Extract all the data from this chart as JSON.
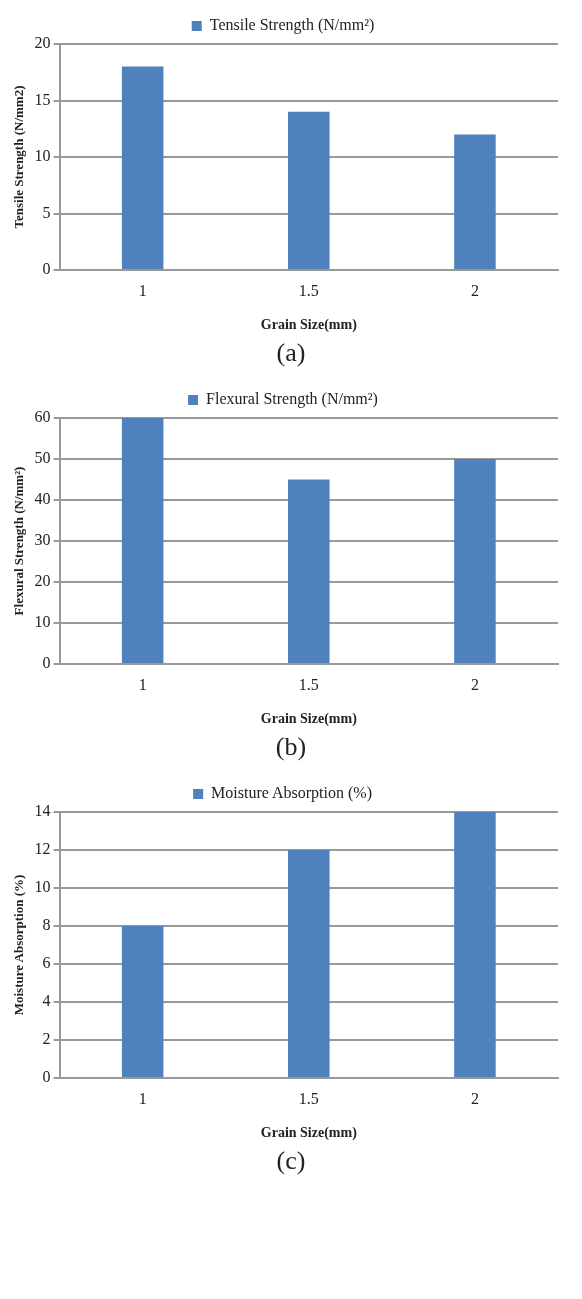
{
  "chart_data": [
    {
      "type": "bar",
      "categories": [
        "1",
        "1.5",
        "2"
      ],
      "series": [
        {
          "name": "Tensile Strength (N/mm²)",
          "color": "#4f81bd",
          "values": [
            18,
            14,
            12
          ]
        }
      ],
      "xlabel": "Grain Size(mm)",
      "ylabel": "Tensile Strength (N/mm2)",
      "ylim": [
        0,
        20
      ],
      "yticks": [
        0,
        5,
        10,
        15,
        20
      ],
      "grid": "y",
      "legend": "top",
      "annotations": [
        "(a)"
      ]
    },
    {
      "type": "bar",
      "categories": [
        "1",
        "1.5",
        "2"
      ],
      "series": [
        {
          "name": "Flexural Strength (N/mm²)",
          "color": "#4f81bd",
          "values": [
            60,
            45,
            50
          ]
        }
      ],
      "xlabel": "Grain Size(mm)",
      "ylabel": "Flexural Strength (N/mm²)",
      "ylim": [
        0,
        60
      ],
      "yticks": [
        0,
        10,
        20,
        30,
        40,
        50,
        60
      ],
      "grid": "y",
      "legend": "top",
      "annotations": [
        "(b)"
      ]
    },
    {
      "type": "bar",
      "categories": [
        "1",
        "1.5",
        "2"
      ],
      "series": [
        {
          "name": "Moisture Absorption (%)",
          "color": "#4f81bd",
          "values": [
            8,
            12,
            14
          ]
        }
      ],
      "xlabel": "Grain Size(mm)",
      "ylabel": "Moisture Absorption (%)",
      "ylim": [
        0,
        14
      ],
      "yticks": [
        0,
        2,
        4,
        6,
        8,
        10,
        12,
        14
      ],
      "grid": "y",
      "legend": "top",
      "annotations": [
        "(c)"
      ]
    }
  ]
}
